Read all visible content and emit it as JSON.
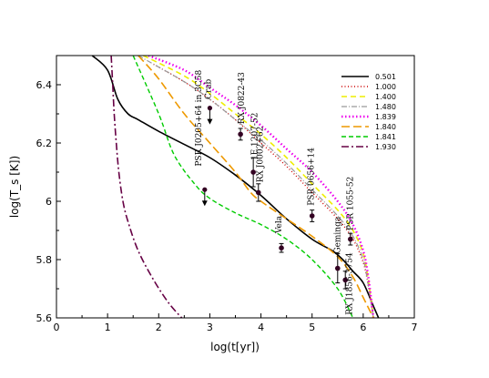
{
  "chart_data": {
    "type": "line",
    "xlabel": "log(t[yr])",
    "ylabel": "log(T_s [K])",
    "xlim": [
      0,
      7
    ],
    "ylim": [
      5.6,
      6.5
    ],
    "x_ticks": [
      0,
      1,
      2,
      3,
      4,
      5,
      6,
      7
    ],
    "y_ticks": [
      5.6,
      5.8,
      6.0,
      6.2,
      6.4
    ],
    "x_tick_labels": [
      "0",
      "1",
      "2",
      "3",
      "4",
      "5",
      "6",
      "7"
    ],
    "y_tick_labels": [
      "5.6",
      "5.8",
      "6",
      "6.2",
      "6.4"
    ],
    "legend_position": "top-right",
    "series": [
      {
        "name": "0.501",
        "color": "#000000",
        "dash": "solid",
        "width": 1.6,
        "x": [
          0.7,
          1.0,
          1.2,
          1.4,
          1.6,
          2.0,
          2.5,
          3.0,
          3.5,
          4.0,
          4.5,
          5.0,
          5.4,
          5.6,
          5.8,
          6.0,
          6.2,
          6.3
        ],
        "y": [
          6.5,
          6.45,
          6.35,
          6.3,
          6.28,
          6.24,
          6.195,
          6.15,
          6.09,
          6.02,
          5.94,
          5.87,
          5.83,
          5.8,
          5.76,
          5.72,
          5.64,
          5.6
        ]
      },
      {
        "name": "1.000",
        "color": "#cc0000",
        "dash": "1,2.5",
        "width": 1.4,
        "x": [
          1.9,
          2.5,
          3.0,
          3.5,
          4.0,
          4.5,
          5.0,
          5.5,
          5.8,
          6.0,
          6.1,
          6.2
        ],
        "y": [
          6.47,
          6.41,
          6.35,
          6.28,
          6.2,
          6.12,
          6.03,
          5.94,
          5.87,
          5.79,
          5.71,
          5.6
        ]
      },
      {
        "name": "1.400",
        "color": "#eeee00",
        "dash": "6,4",
        "width": 1.6,
        "x": [
          1.7,
          2.5,
          3.0,
          3.5,
          4.0,
          4.5,
          5.0,
          5.5,
          5.8,
          6.0,
          6.1,
          6.2
        ],
        "y": [
          6.5,
          6.43,
          6.37,
          6.3,
          6.23,
          6.15,
          6.06,
          5.97,
          5.9,
          5.82,
          5.73,
          5.6
        ]
      },
      {
        "name": "1.480",
        "color": "#999999",
        "dash": "6,2,1,2",
        "width": 1.2,
        "x": [
          1.6,
          2.5,
          3.0,
          3.5,
          4.0,
          4.5,
          5.0,
          5.5,
          5.8,
          6.0,
          6.1,
          6.2
        ],
        "y": [
          6.5,
          6.41,
          6.35,
          6.28,
          6.21,
          6.13,
          6.04,
          5.95,
          5.88,
          5.8,
          5.71,
          5.6
        ]
      },
      {
        "name": "1.839",
        "color": "#ee00ee",
        "dash": "1.5,2.5",
        "width": 2.4,
        "x": [
          1.8,
          2.5,
          3.0,
          3.5,
          4.0,
          4.5,
          5.0,
          5.5,
          5.8,
          6.0,
          6.1,
          6.2
        ],
        "y": [
          6.5,
          6.45,
          6.39,
          6.33,
          6.26,
          6.18,
          6.1,
          6.0,
          5.92,
          5.83,
          5.74,
          5.6
        ]
      },
      {
        "name": "1.840",
        "color": "#ee9900",
        "dash": "9,4",
        "width": 1.6,
        "x": [
          1.6,
          2.0,
          2.5,
          3.0,
          3.5,
          3.8,
          4.0,
          4.5,
          5.0,
          5.5,
          5.8,
          6.0,
          6.2
        ],
        "y": [
          6.5,
          6.42,
          6.3,
          6.2,
          6.1,
          6.03,
          6.0,
          5.94,
          5.88,
          5.81,
          5.74,
          5.67,
          5.6
        ]
      },
      {
        "name": "1.841",
        "color": "#00cc00",
        "dash": "5,3",
        "width": 1.4,
        "x": [
          1.5,
          2.0,
          2.3,
          2.7,
          3.0,
          3.5,
          4.0,
          4.5,
          5.0,
          5.5,
          5.8
        ],
        "y": [
          6.5,
          6.3,
          6.16,
          6.06,
          6.01,
          5.96,
          5.92,
          5.87,
          5.8,
          5.7,
          5.6
        ]
      },
      {
        "name": "1.930",
        "color": "#660044",
        "dash": "8,3,2,3",
        "width": 1.6,
        "x": [
          1.07,
          1.1,
          1.13,
          1.17,
          1.22,
          1.3,
          1.4,
          1.6,
          1.9,
          2.2,
          2.45
        ],
        "y": [
          6.5,
          6.4,
          6.3,
          6.2,
          6.1,
          6.0,
          5.93,
          5.83,
          5.73,
          5.65,
          5.6
        ]
      }
    ],
    "observations": [
      {
        "name": "Crab",
        "x": 3.0,
        "y": 6.32,
        "type": "upper_limit"
      },
      {
        "name": "RX J0822-43",
        "x": 3.6,
        "y": 6.23,
        "type": "point",
        "err": 0.02
      },
      {
        "name": "1E 1207-52",
        "x": 3.85,
        "y": 6.1,
        "type": "point",
        "err": 0.05
      },
      {
        "name": "RX J0002+62",
        "x": 3.95,
        "y": 6.03,
        "type": "point",
        "err": 0.03
      },
      {
        "name": "PSR J0205+64 in 3C58",
        "x": 2.9,
        "y": 6.04,
        "type": "upper_limit"
      },
      {
        "name": "Vela",
        "x": 4.4,
        "y": 5.84,
        "type": "point",
        "err": 0.015
      },
      {
        "name": "PSR 0656+14",
        "x": 5.0,
        "y": 5.95,
        "type": "point",
        "err": 0.02
      },
      {
        "name": "Geminga",
        "x": 5.5,
        "y": 5.77,
        "type": "point",
        "err": 0.05
      },
      {
        "name": "PSR 1055-52",
        "x": 5.75,
        "y": 5.87,
        "type": "point",
        "err": 0.02
      },
      {
        "name": "RX J1856-3754",
        "x": 5.65,
        "y": 5.73,
        "type": "point",
        "err": 0.03
      }
    ]
  }
}
